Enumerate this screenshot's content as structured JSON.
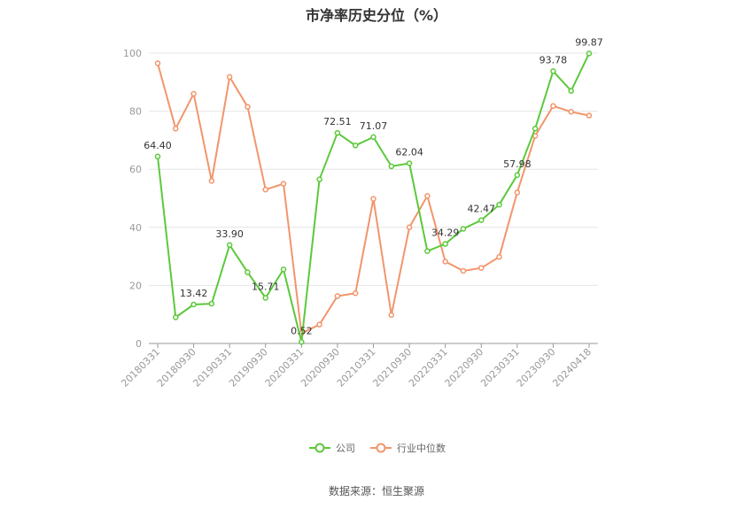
{
  "chart_data": {
    "type": "line",
    "title": "市净率历史分位（%）",
    "source": "数据来源：恒生聚源",
    "ylim": [
      0,
      100
    ],
    "yticks": [
      0,
      20,
      40,
      60,
      80,
      100
    ],
    "xtick_labels": [
      "20180331",
      "20180930",
      "20190331",
      "20190930",
      "20200331",
      "20200930",
      "20210331",
      "20210930",
      "20220331",
      "20220930",
      "20230331",
      "20230930",
      "20240418"
    ],
    "xtick_positions": [
      0,
      2,
      4,
      6,
      8,
      10,
      12,
      14,
      16,
      18,
      20,
      22,
      24
    ],
    "grid": true,
    "legend_position": "bottom",
    "series": [
      {
        "name": "公司",
        "color": "#5cc93b",
        "values": [
          64.4,
          9,
          13.42,
          13.7,
          33.9,
          24.5,
          15.71,
          25.5,
          0.52,
          56.5,
          72.51,
          68.2,
          71.07,
          61,
          62.04,
          31.8,
          34.29,
          39.5,
          42.47,
          47.8,
          57.98,
          74,
          93.78,
          87,
          99.87
        ],
        "labels": [
          "64.40",
          "",
          "13.42",
          "",
          "33.90",
          "",
          "15.71",
          "",
          "0.52",
          "",
          "72.51",
          "",
          "71.07",
          "",
          "62.04",
          "",
          "34.29",
          "",
          "42.47",
          "",
          "57.98",
          "",
          "93.78",
          "",
          "99.87"
        ]
      },
      {
        "name": "行业中位数",
        "color": "#f2956b",
        "values": [
          96.5,
          74,
          86,
          56,
          91.8,
          81.5,
          53,
          55,
          3.5,
          6.5,
          16.3,
          17.3,
          49.8,
          9.8,
          40,
          50.8,
          28.2,
          25,
          26,
          29.8,
          52,
          71.5,
          81.8,
          79.8,
          78.5
        ]
      }
    ]
  }
}
